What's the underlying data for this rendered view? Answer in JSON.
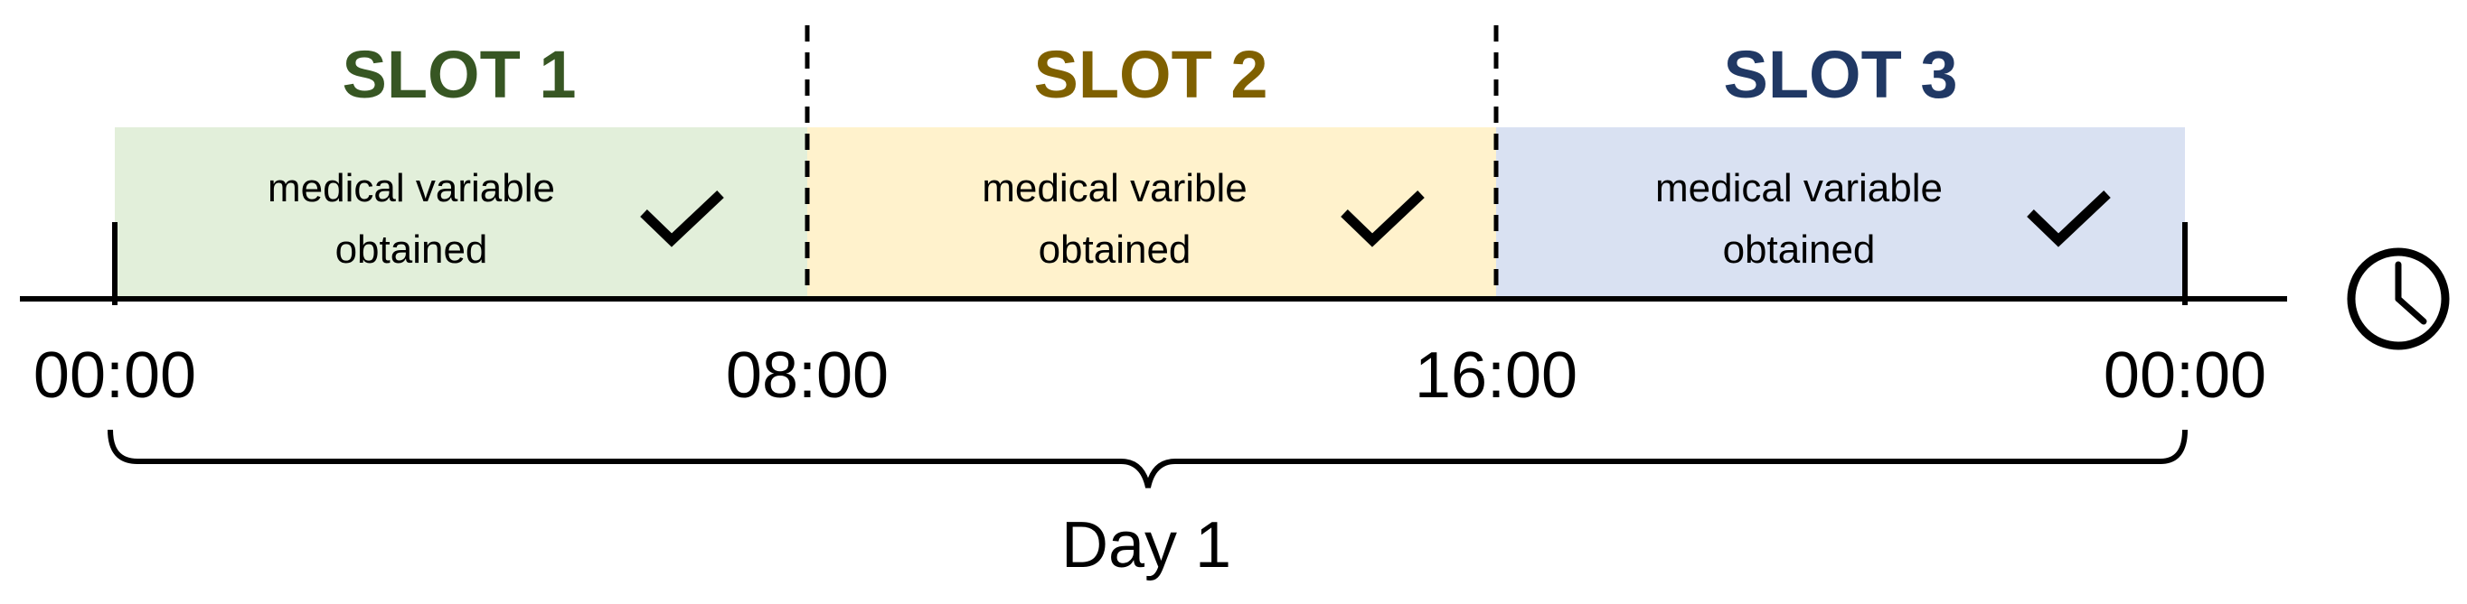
{
  "slots": [
    {
      "title": "SLOT 1",
      "line1": "medical variable",
      "line2": "obtained",
      "fill": "#e2efda",
      "title_color": "#375623"
    },
    {
      "title": "SLOT 2",
      "line1": "medical varible",
      "line2": "obtained",
      "fill": "#fff2cc",
      "title_color": "#7f6000"
    },
    {
      "title": "SLOT 3",
      "line1": "medical variable",
      "line2": "obtained",
      "fill": "#d9e1f2",
      "title_color": "#203864"
    }
  ],
  "times": [
    "00:00",
    "08:00",
    "16:00",
    "00:00"
  ],
  "day_label": "Day 1",
  "icons": {
    "check": "checkmark-icon",
    "clock": "clock-icon"
  },
  "line_color": "#000000"
}
